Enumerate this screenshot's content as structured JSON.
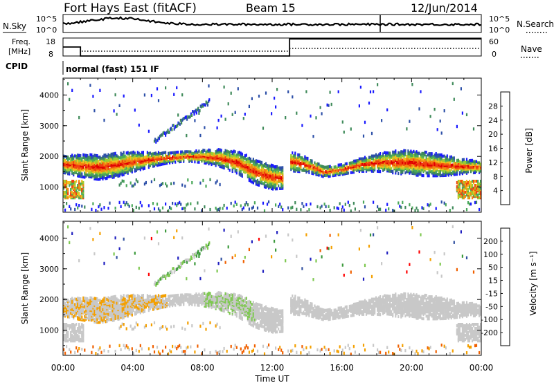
{
  "header": {
    "station": "Fort Hays East (fitACF)",
    "beam": "Beam 15",
    "date": "12/Jun/2014"
  },
  "top_panels": {
    "nsky_label": "N.Sky",
    "nsearch_label": "N.Search",
    "noise_ticks": [
      "10^5",
      "10^0"
    ],
    "freq_label_1": "Freq.",
    "freq_label_2": "[MHz]",
    "freq_ticks": [
      "18",
      "8"
    ],
    "nave_label": "Nave",
    "nave_ticks": [
      "60",
      "0"
    ],
    "cpid_label": "CPID",
    "cpid_text": "normal (fast) 151 IF"
  },
  "colors": {
    "power": [
      "#1a1aff",
      "#2d50a8",
      "#3f8a5a",
      "#4aa85a",
      "#9acd32",
      "#f0c020",
      "#f08a10",
      "#f04010",
      "#e00000"
    ],
    "velocity": [
      "#ff0000",
      "#f06000",
      "#f4a000",
      "#c8c8c8",
      "#c8c8c8",
      "#7ec850",
      "#3c9a3c",
      "#3050a0",
      "#2020c0"
    ]
  },
  "chart_data": [
    {
      "type": "heatmap",
      "panel": "power",
      "xlabel": "Time UT",
      "ylabel": "Slant Range [km]",
      "x_ticks": [
        "00:00",
        "04:00",
        "08:00",
        "12:00",
        "16:00",
        "20:00",
        "00:00"
      ],
      "x_hours": [
        0,
        4,
        8,
        12,
        16,
        20,
        24
      ],
      "y_ticks": [
        1000,
        2000,
        3000,
        4000
      ],
      "ylim": [
        180,
        4550
      ],
      "colorbar_label": "Power [dB]",
      "colorbar_ticks": [
        "28",
        "24",
        "20",
        "16",
        "12",
        "8",
        "4"
      ],
      "echo_band_center_km": [
        [
          0,
          1750
        ],
        [
          1,
          1700
        ],
        [
          2,
          1650
        ],
        [
          3,
          1720
        ],
        [
          4,
          1830
        ],
        [
          5,
          1900
        ],
        [
          6,
          1960
        ],
        [
          7,
          2000
        ],
        [
          8,
          2000
        ],
        [
          9,
          1950
        ],
        [
          10,
          1800
        ],
        [
          11,
          1500
        ],
        [
          12,
          1320
        ],
        [
          13,
          1300
        ],
        [
          13.01,
          1850
        ],
        [
          14,
          1720
        ],
        [
          15,
          1500
        ],
        [
          16,
          1580
        ],
        [
          17,
          1720
        ],
        [
          18,
          1800
        ],
        [
          19,
          1820
        ],
        [
          20,
          1800
        ],
        [
          21,
          1750
        ],
        [
          22,
          1700
        ],
        [
          23,
          1680
        ],
        [
          24,
          1650
        ]
      ]
    },
    {
      "type": "heatmap",
      "panel": "velocity",
      "xlabel": "Time UT",
      "ylabel": "Slant Range [km]",
      "x_ticks": [
        "00:00",
        "04:00",
        "08:00",
        "12:00",
        "16:00",
        "20:00",
        "00:00"
      ],
      "y_ticks": [
        1000,
        2000,
        3000,
        4000
      ],
      "ylim": [
        180,
        4550
      ],
      "colorbar_label": "Velocity [m s⁻¹]",
      "colorbar_ticks": [
        "200",
        "100",
        "50",
        "15",
        "-15",
        "-50",
        "-100",
        "-200"
      ]
    },
    {
      "type": "line",
      "panel": "frequency",
      "ylabel": "Freq. [MHz]",
      "ylim": [
        8,
        18
      ],
      "x": [
        0,
        1,
        1,
        13,
        13,
        24
      ],
      "y": [
        13,
        13,
        8,
        8,
        17.5,
        17.5
      ]
    }
  ]
}
